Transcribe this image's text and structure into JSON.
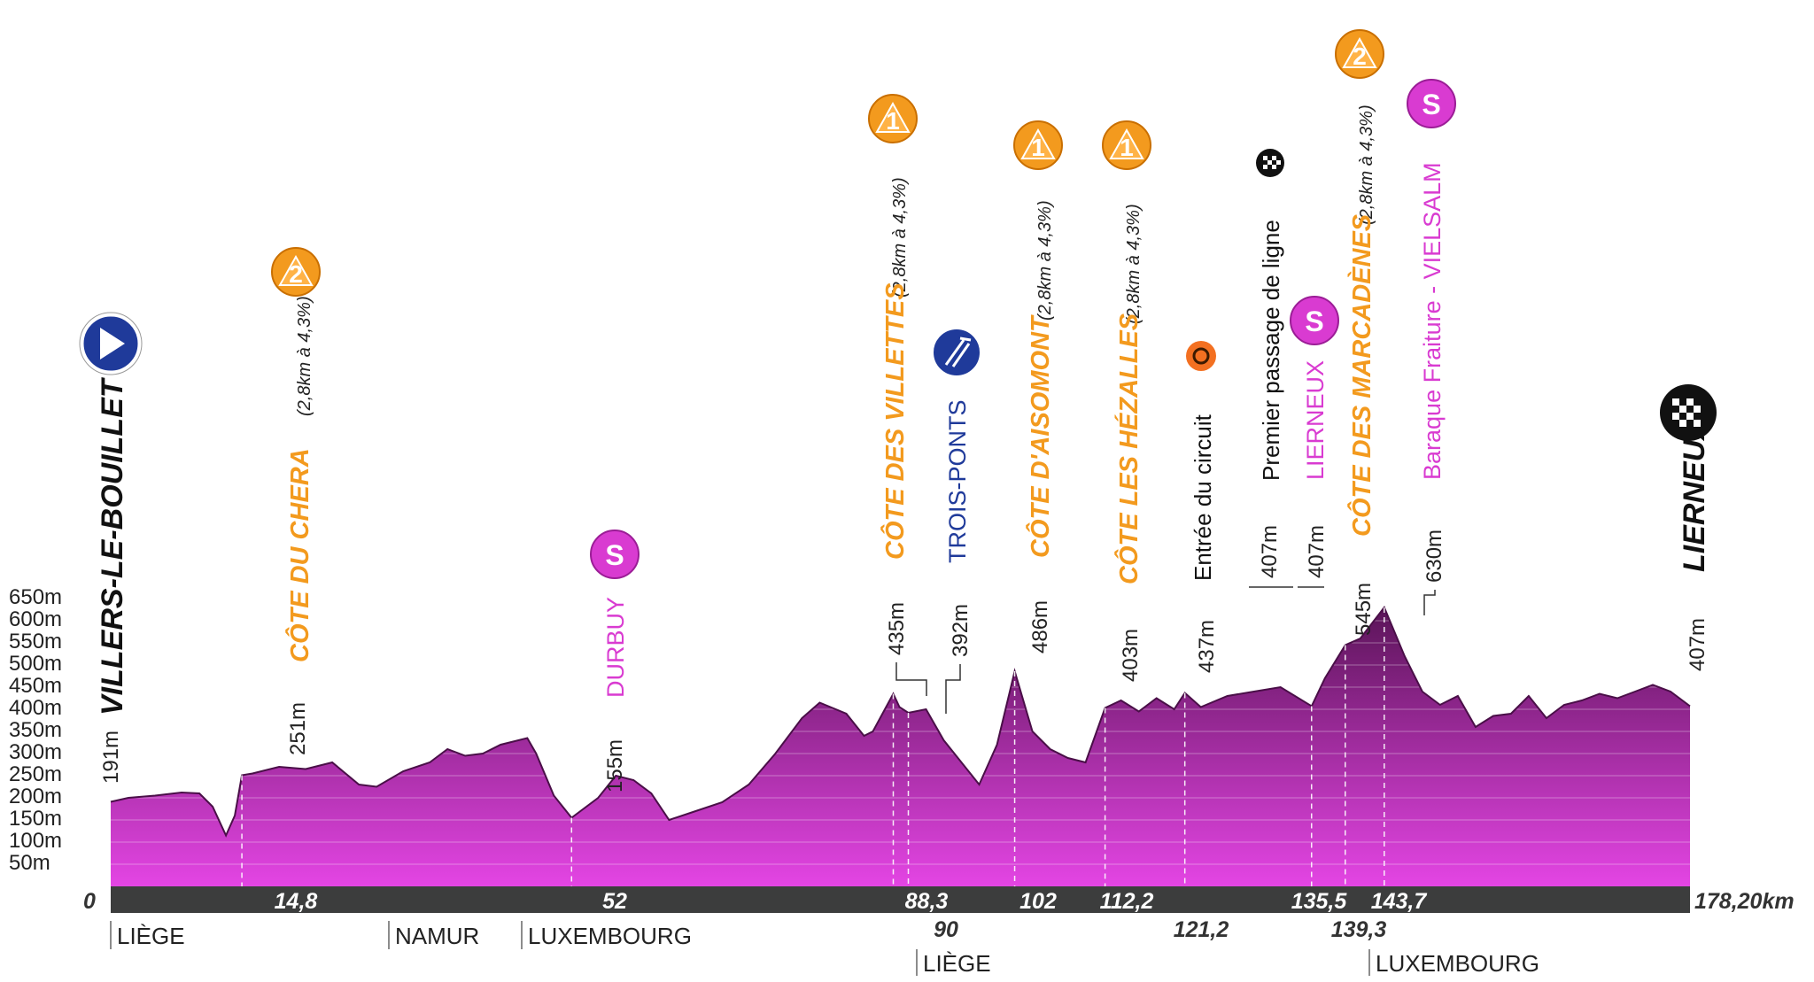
{
  "chart_data": {
    "type": "area",
    "xlim": [
      0,
      178.2
    ],
    "ylim": [
      0,
      700
    ],
    "y_ticks": [
      "50m",
      "100m",
      "150m",
      "200m",
      "250m",
      "300m",
      "350m",
      "400m",
      "450m",
      "500m",
      "550m",
      "600m",
      "650m"
    ],
    "distance_start": "0",
    "distance_end": "178,20km",
    "start_town": "VILLERS-LE-BOUILLET",
    "finish_town": "LIERNEUX",
    "colors": {
      "fill_top": "#6e1a6a",
      "fill_bottom": "#e03fe0",
      "axis_bar": "#3c3d3d",
      "climb": "#f39a1e",
      "sprint": "#d93bd1",
      "feed": "#1f3a9a"
    },
    "profile": [
      {
        "km": 0,
        "alt": 191
      },
      {
        "km": 2,
        "alt": 200
      },
      {
        "km": 5,
        "alt": 205
      },
      {
        "km": 8,
        "alt": 212
      },
      {
        "km": 10,
        "alt": 210
      },
      {
        "km": 11.5,
        "alt": 180
      },
      {
        "km": 13,
        "alt": 115
      },
      {
        "km": 14,
        "alt": 160
      },
      {
        "km": 14.8,
        "alt": 251
      },
      {
        "km": 16,
        "alt": 255
      },
      {
        "km": 19,
        "alt": 270
      },
      {
        "km": 22,
        "alt": 265
      },
      {
        "km": 25,
        "alt": 280
      },
      {
        "km": 28,
        "alt": 230
      },
      {
        "km": 30,
        "alt": 225
      },
      {
        "km": 33,
        "alt": 260
      },
      {
        "km": 36,
        "alt": 280
      },
      {
        "km": 38,
        "alt": 310
      },
      {
        "km": 40,
        "alt": 295
      },
      {
        "km": 42,
        "alt": 300
      },
      {
        "km": 44,
        "alt": 320
      },
      {
        "km": 47,
        "alt": 335
      },
      {
        "km": 48,
        "alt": 300
      },
      {
        "km": 50,
        "alt": 205
      },
      {
        "km": 52,
        "alt": 155
      },
      {
        "km": 55,
        "alt": 200
      },
      {
        "km": 57,
        "alt": 250
      },
      {
        "km": 59,
        "alt": 240
      },
      {
        "km": 61,
        "alt": 210
      },
      {
        "km": 63,
        "alt": 150
      },
      {
        "km": 66,
        "alt": 170
      },
      {
        "km": 69,
        "alt": 190
      },
      {
        "km": 72,
        "alt": 230
      },
      {
        "km": 75,
        "alt": 300
      },
      {
        "km": 78,
        "alt": 380
      },
      {
        "km": 80,
        "alt": 415
      },
      {
        "km": 83,
        "alt": 390
      },
      {
        "km": 85,
        "alt": 340
      },
      {
        "km": 86,
        "alt": 350
      },
      {
        "km": 88.3,
        "alt": 435
      },
      {
        "km": 89,
        "alt": 405
      },
      {
        "km": 90,
        "alt": 392
      },
      {
        "km": 92,
        "alt": 400
      },
      {
        "km": 94,
        "alt": 330
      },
      {
        "km": 96,
        "alt": 280
      },
      {
        "km": 98,
        "alt": 230
      },
      {
        "km": 100,
        "alt": 320
      },
      {
        "km": 102,
        "alt": 486
      },
      {
        "km": 104,
        "alt": 350
      },
      {
        "km": 106,
        "alt": 310
      },
      {
        "km": 108,
        "alt": 290
      },
      {
        "km": 110,
        "alt": 280
      },
      {
        "km": 112.2,
        "alt": 403
      },
      {
        "km": 114,
        "alt": 420
      },
      {
        "km": 116,
        "alt": 395
      },
      {
        "km": 118,
        "alt": 425
      },
      {
        "km": 120,
        "alt": 400
      },
      {
        "km": 121.2,
        "alt": 437
      },
      {
        "km": 123,
        "alt": 405
      },
      {
        "km": 126,
        "alt": 430
      },
      {
        "km": 129,
        "alt": 440
      },
      {
        "km": 132,
        "alt": 450
      },
      {
        "km": 135.5,
        "alt": 407
      },
      {
        "km": 137,
        "alt": 470
      },
      {
        "km": 139.3,
        "alt": 545
      },
      {
        "km": 141,
        "alt": 560
      },
      {
        "km": 143.7,
        "alt": 630
      },
      {
        "km": 146,
        "alt": 520
      },
      {
        "km": 148,
        "alt": 440
      },
      {
        "km": 150,
        "alt": 410
      },
      {
        "km": 152,
        "alt": 430
      },
      {
        "km": 154,
        "alt": 360
      },
      {
        "km": 156,
        "alt": 385
      },
      {
        "km": 158,
        "alt": 390
      },
      {
        "km": 160,
        "alt": 430
      },
      {
        "km": 162,
        "alt": 380
      },
      {
        "km": 164,
        "alt": 410
      },
      {
        "km": 166,
        "alt": 420
      },
      {
        "km": 168,
        "alt": 435
      },
      {
        "km": 170,
        "alt": 425
      },
      {
        "km": 172,
        "alt": 440
      },
      {
        "km": 174,
        "alt": 455
      },
      {
        "km": 176,
        "alt": 440
      },
      {
        "km": 178.2,
        "alt": 407
      }
    ],
    "km_ticks_top": [
      "14,8",
      "52",
      "88,3",
      "102",
      "112,2",
      "135,5",
      "143,7"
    ],
    "km_ticks_bottom": [
      "90",
      "121,2",
      "139,3"
    ],
    "altitude_labels": [
      "191m",
      "251m",
      "155m",
      "435m",
      "392m",
      "486m",
      "403m",
      "437m",
      "407m",
      "407m",
      "545m",
      "630m",
      "407m"
    ],
    "climbs": [
      {
        "name": "CÔTE DU CHERA",
        "detail": "(2,8km à 4,3%)",
        "category": "2"
      },
      {
        "name": "CÔTE DES VILLETTES",
        "detail": "(2,8km à 4,3%)",
        "category": "1"
      },
      {
        "name": "CÔTE D'AISOMONT",
        "detail": "(2,8km à 4,3%)",
        "category": "1"
      },
      {
        "name": "CÔTE LES HÉZALLES",
        "detail": "(2,8km à 4,3%)",
        "category": "1"
      },
      {
        "name": "CÔTE DES MARCADÈNES",
        "detail": "(2,8km à 4,3%)",
        "category": "2"
      }
    ],
    "sprints": [
      {
        "name": "DURBUY",
        "icon": "S"
      },
      {
        "name": "LIERNEUX",
        "icon": "S"
      },
      {
        "name": "Baraque Fraiture - VIELSALM",
        "icon": "S"
      }
    ],
    "feed_zone": "TROIS-PONTS",
    "circuit_entry": "Entrée du circuit",
    "first_line_pass": "Premier passage de ligne",
    "provinces": [
      "LIÈGE",
      "NAMUR",
      "LUXEMBOURG",
      "LIÈGE",
      "LUXEMBOURG"
    ]
  }
}
